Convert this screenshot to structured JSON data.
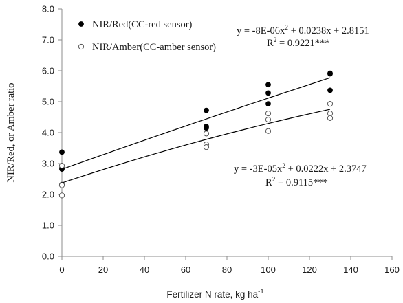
{
  "chart_data": {
    "type": "scatter",
    "title": "",
    "xlabel": "Fertilizer N rate, kg ha",
    "xlabel_sup": "-1",
    "ylabel": "NIR/Red, or Amber ratio",
    "xlim": [
      0,
      160
    ],
    "ylim": [
      0.0,
      8.0
    ],
    "x_ticks": [
      0,
      20,
      40,
      60,
      80,
      100,
      120,
      140,
      160
    ],
    "x_tick_labels": [
      "0",
      "20",
      "40",
      "60",
      "80",
      "100",
      "120",
      "140",
      "160"
    ],
    "y_ticks": [
      0,
      1,
      2,
      3,
      4,
      5,
      6,
      7,
      8
    ],
    "y_tick_labels": [
      "0.0",
      "1.0",
      "2.0",
      "3.0",
      "4.0",
      "5.0",
      "6.0",
      "7.0",
      "8.0"
    ],
    "grid": false,
    "legend_position": "top-left",
    "series": [
      {
        "name": "NIR/Red(CC-red sensor)",
        "marker": "filled-circle",
        "color": "#000000",
        "points": [
          {
            "x": 0,
            "y": 3.37
          },
          {
            "x": 0,
            "y": 2.85
          },
          {
            "x": 0,
            "y": 2.82
          },
          {
            "x": 0,
            "y": 2.32
          },
          {
            "x": 70,
            "y": 4.72
          },
          {
            "x": 70,
            "y": 4.2
          },
          {
            "x": 70,
            "y": 4.15
          },
          {
            "x": 100,
            "y": 5.55
          },
          {
            "x": 100,
            "y": 5.28
          },
          {
            "x": 100,
            "y": 4.93
          },
          {
            "x": 130,
            "y": 5.9
          },
          {
            "x": 130,
            "y": 5.92
          },
          {
            "x": 130,
            "y": 5.37
          }
        ],
        "trendline": {
          "a": -8e-06,
          "b": 0.0238,
          "c": 2.8151,
          "x_range": [
            0,
            130
          ]
        },
        "equation": {
          "main": "y = -8E-06x",
          "exp": "2",
          "rest": " + 0.0238x + 2.8151"
        },
        "r2": {
          "main": "R",
          "exp": "2",
          "rest": " = 0.9221***"
        }
      },
      {
        "name": "NIR/Amber(CC-amber sensor)",
        "marker": "open-circle",
        "color": "#000000",
        "points": [
          {
            "x": 0,
            "y": 2.93
          },
          {
            "x": 0,
            "y": 2.3
          },
          {
            "x": 0,
            "y": 1.97
          },
          {
            "x": 70,
            "y": 3.97
          },
          {
            "x": 70,
            "y": 3.62
          },
          {
            "x": 70,
            "y": 3.53
          },
          {
            "x": 100,
            "y": 4.62
          },
          {
            "x": 100,
            "y": 4.42
          },
          {
            "x": 100,
            "y": 4.05
          },
          {
            "x": 130,
            "y": 4.93
          },
          {
            "x": 130,
            "y": 4.62
          },
          {
            "x": 130,
            "y": 4.47
          }
        ],
        "trendline": {
          "a": -3e-05,
          "b": 0.0222,
          "c": 2.3747,
          "x_range": [
            0,
            130
          ]
        },
        "equation": {
          "main": "y = -3E-05x",
          "exp": "2",
          "rest": " + 0.0222x + 2.3747"
        },
        "r2": {
          "main": "R",
          "exp": "2",
          "rest": " = 0.9115***"
        }
      }
    ]
  }
}
